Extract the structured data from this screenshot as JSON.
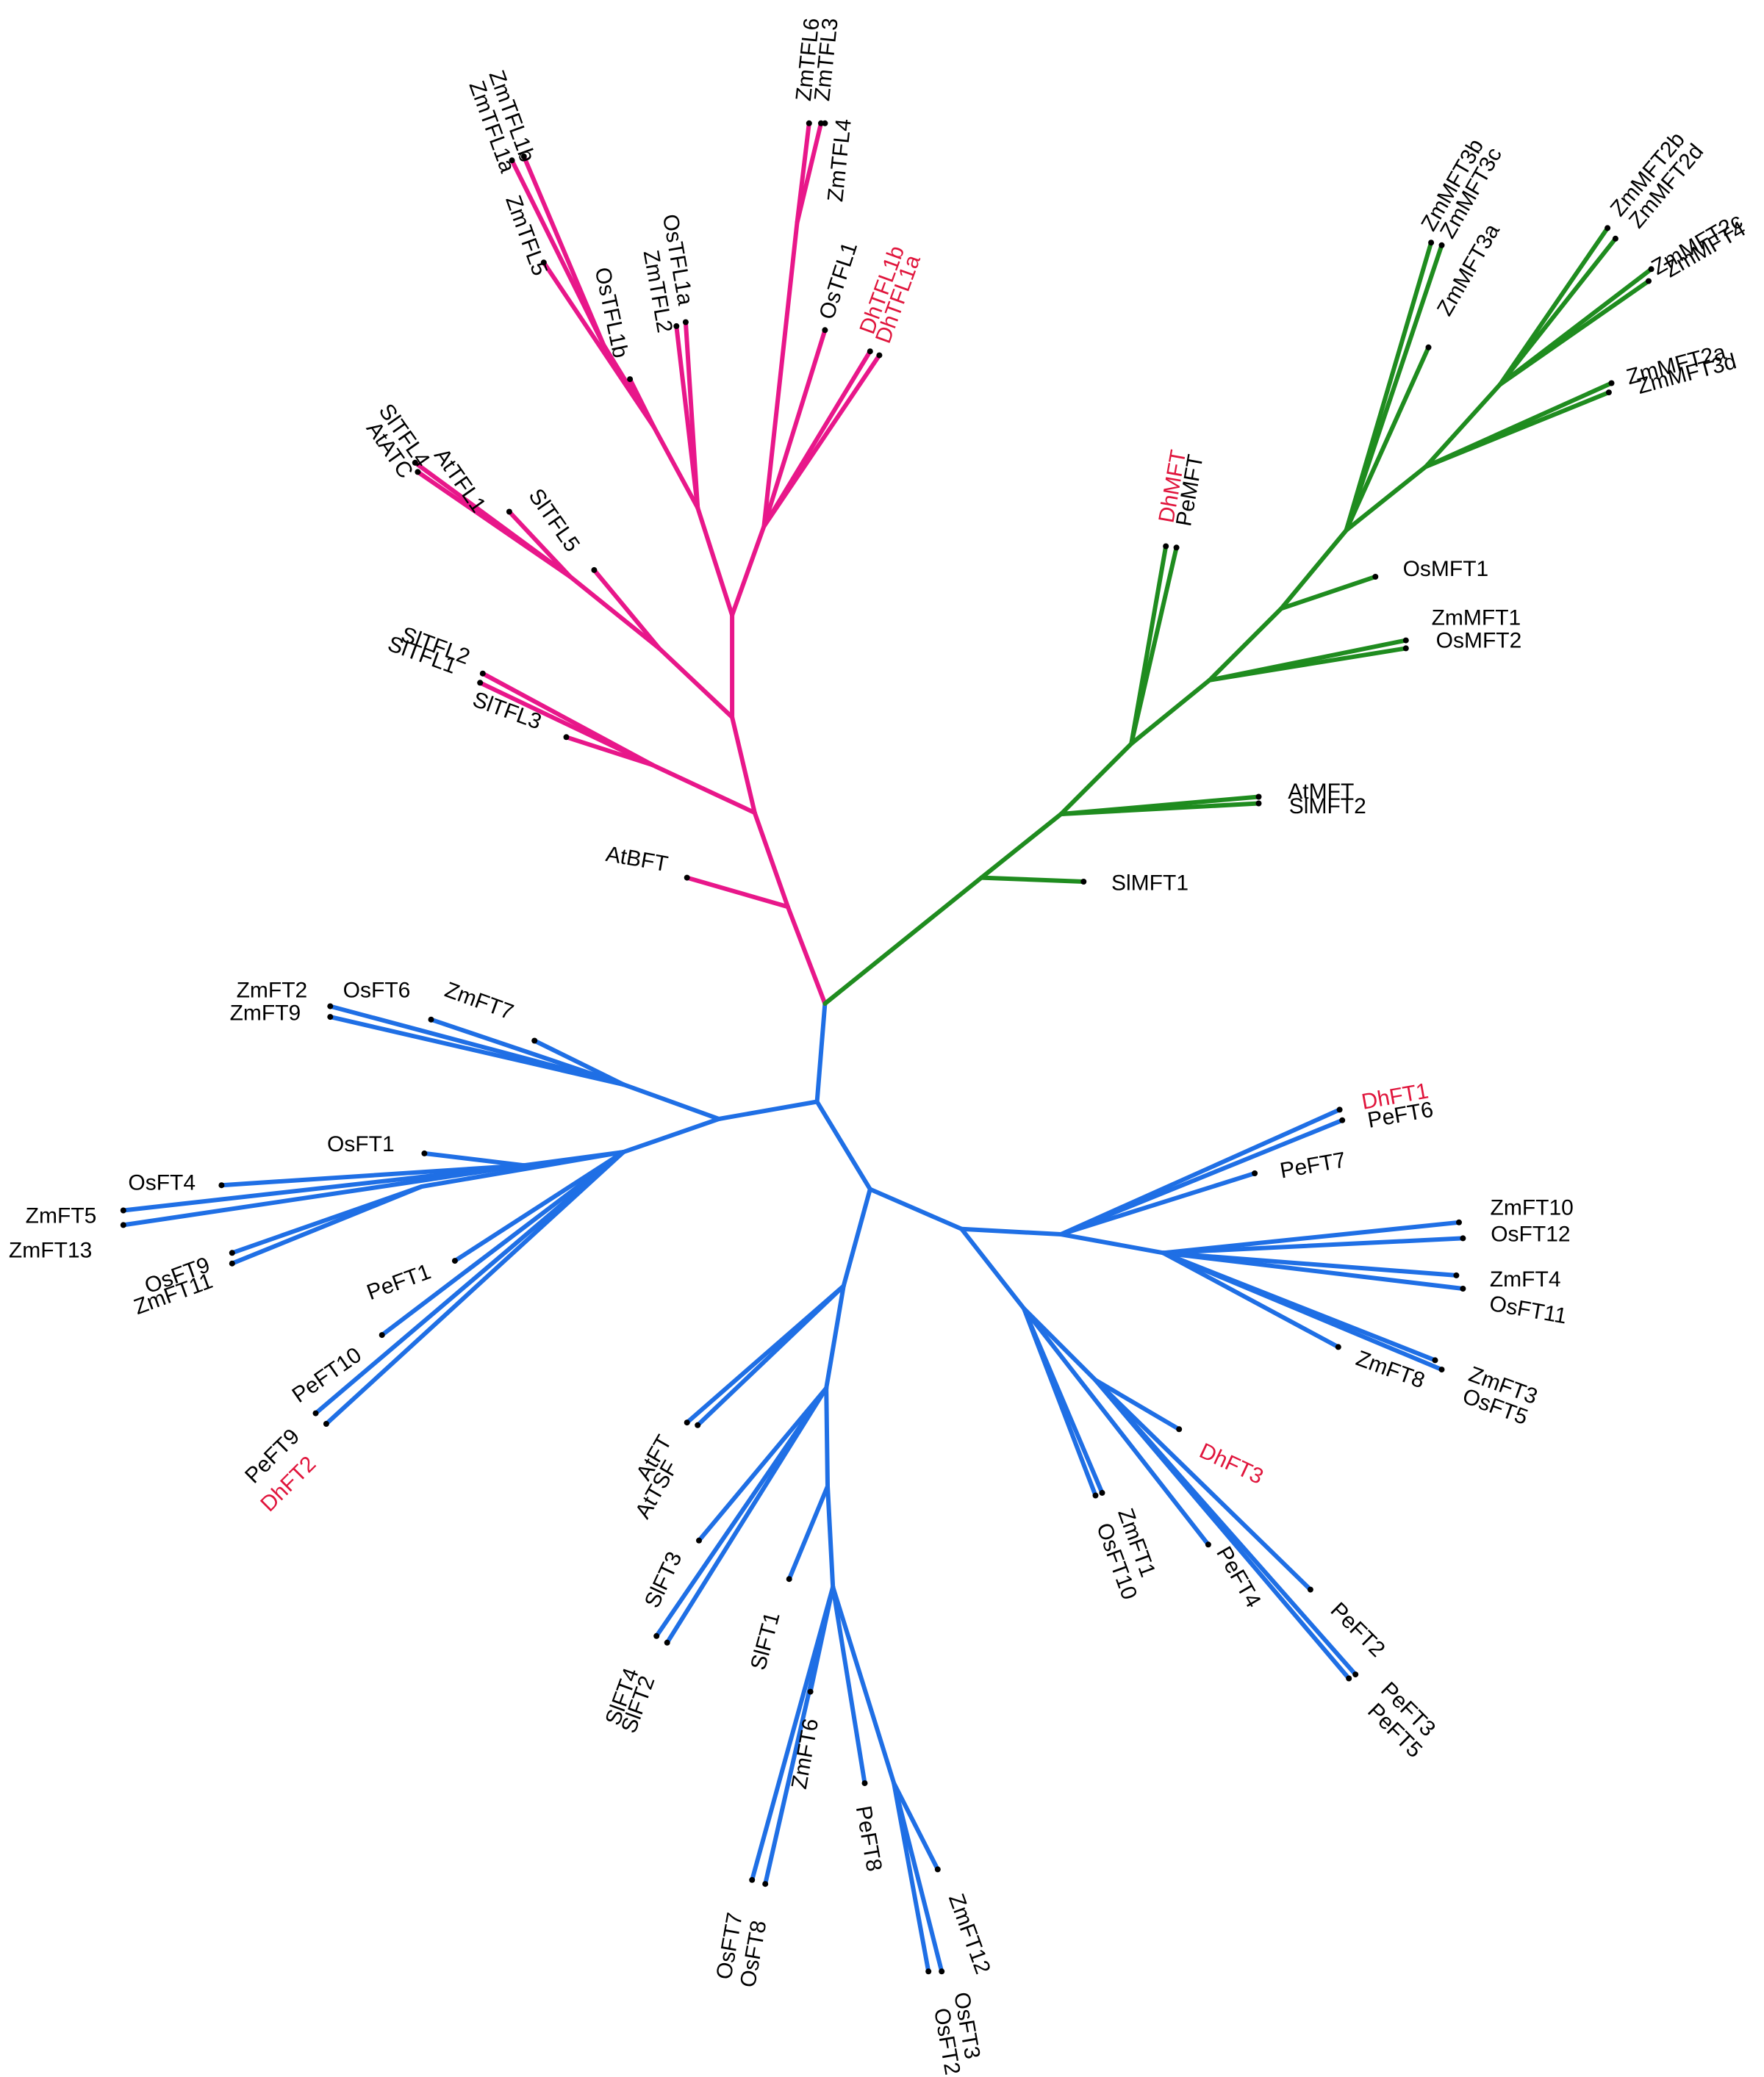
{
  "colors": {
    "tfl_clade": "#e8178a",
    "mft_clade": "#1f8c1f",
    "ft_clade": "#1f6fe5",
    "highlight_label": "#e0153c",
    "label": "#000000"
  },
  "labels": {
    "ZmTFL1b": "ZmTFL1b",
    "ZmTFL1a": "ZmTFL1a",
    "ZmTFL5": "ZmTFL5",
    "OsTFL1b": "OsTFL1b",
    "ZmTFL2": "ZmTFL2",
    "OsTFL1a": "OsTFL1a",
    "ZmTFL6": "ZmTFL6",
    "ZmTFL3": "ZmTFL3",
    "ZmTFL4": "ZmTFL4",
    "OsTFL1": "OsTFL1",
    "DhTFL1b": "DhTFL1b",
    "DhTFL1a": "DhTFL1a",
    "SlTFL4": "SlTFL4",
    "AtATC": "AtATC",
    "AtTFL1": "AtTFL1",
    "SlTFL5": "SlTFL5",
    "SlTFL2": "SlTFL2",
    "SlTFL1": "SlTFL1",
    "SlTFL3": "SlTFL3",
    "AtBFT": "AtBFT",
    "ZmMFT3b": "ZmMFT3b",
    "ZmMFT3c": "ZmMFT3c",
    "ZmMFT3a": "ZmMFT3a",
    "ZmMFT2b": "ZmMFT2b",
    "ZmMFT2d": "ZmMFT2d",
    "ZmMFT2c": "ZmMFT2c",
    "ZmMFT4": "ZmMFT4",
    "ZmMFT2a": "ZmMFT2a",
    "ZmMFT3d": "ZmMFT3d",
    "DhMFT": "DhMFT",
    "PeMFT": "PeMFT",
    "OsMFT1": "OsMFT1",
    "ZmMFT1": "ZmMFT1",
    "OsMFT2": "OsMFT2",
    "AtMFT": "AtMFT",
    "SlMFT2": "SlMFT2",
    "SlMFT1": "SlMFT1",
    "ZmFT2": "ZmFT2",
    "ZmFT9": "ZmFT9",
    "OsFT6": "OsFT6",
    "ZmFT7": "ZmFT7",
    "OsFT1": "OsFT1",
    "OsFT4": "OsFT4",
    "ZmFT5": "ZmFT5",
    "ZmFT13": "ZmFT13",
    "OsFT9": "OsFT9",
    "ZmFT11": "ZmFT11",
    "PeFT1": "PeFT1",
    "PeFT10": "PeFT10",
    "PeFT9": "PeFT9",
    "DhFT2": "DhFT2",
    "AtFT": "AtFT",
    "AtTSF": "AtTSF",
    "SlFT3": "SlFT3",
    "SlFT4": "SlFT4",
    "SlFT2": "SlFT2",
    "SlFT1": "SlFT1",
    "ZmFT6": "ZmFT6",
    "PeFT8": "PeFT8",
    "OsFT7": "OsFT7",
    "OsFT8": "OsFT8",
    "ZmFT12": "ZmFT12",
    "OsFT3": "OsFT3",
    "OsFT2": "OsFT2",
    "DhFT1": "DhFT1",
    "PeFT6": "PeFT6",
    "PeFT7": "PeFT7",
    "ZmFT10": "ZmFT10",
    "OsFT12": "OsFT12",
    "ZmFT4": "ZmFT4",
    "OsFT11": "OsFT11",
    "ZmFT8": "ZmFT8",
    "ZmFT3": "ZmFT3",
    "OsFT5": "OsFT5",
    "DhFT3": "DhFT3",
    "ZmFT1": "ZmFT1",
    "OsFT10": "OsFT10",
    "PeFT4": "PeFT4",
    "PeFT2": "PeFT2",
    "PeFT3": "PeFT3",
    "PeFT5": "PeFT5"
  }
}
